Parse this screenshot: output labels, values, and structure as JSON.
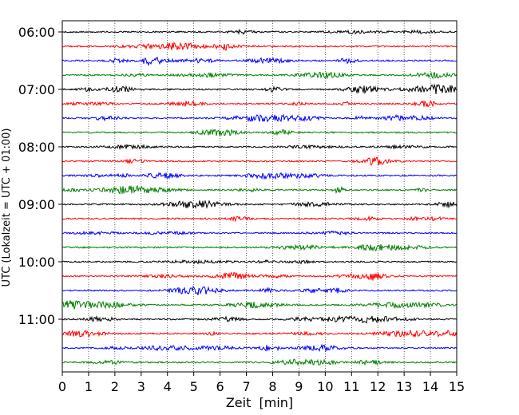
{
  "chart_data": {
    "type": "line",
    "title": "",
    "xlabel": "Zeit  [min]",
    "ylabel": "UTC (Lokalzeit = UTC + 01:00)",
    "xlim": [
      0,
      15
    ],
    "xticks": [
      0,
      1,
      2,
      3,
      4,
      5,
      6,
      7,
      8,
      9,
      10,
      11,
      12,
      13,
      14,
      15
    ],
    "xtick_labels": [
      "0",
      "1",
      "2",
      "3",
      "4",
      "5",
      "6",
      "7",
      "8",
      "9",
      "10",
      "11",
      "12",
      "13",
      "14",
      "15"
    ],
    "ytick_labels": [
      "06:00",
      "07:00",
      "08:00",
      "09:00",
      "10:00",
      "11:00"
    ],
    "grid": "vertical dotted",
    "trace_colors": [
      "#000000",
      "#ff0000",
      "#0000ff",
      "#008000"
    ],
    "traces_per_hour": 4,
    "trace_start_times": [
      "06:00",
      "06:15",
      "06:30",
      "06:45",
      "07:00",
      "07:15",
      "07:30",
      "07:45",
      "08:00",
      "08:15",
      "08:30",
      "08:45",
      "09:00",
      "09:15",
      "09:30",
      "09:45",
      "10:00",
      "10:15",
      "10:30",
      "10:45",
      "11:00",
      "11:15",
      "11:30",
      "11:45"
    ]
  }
}
